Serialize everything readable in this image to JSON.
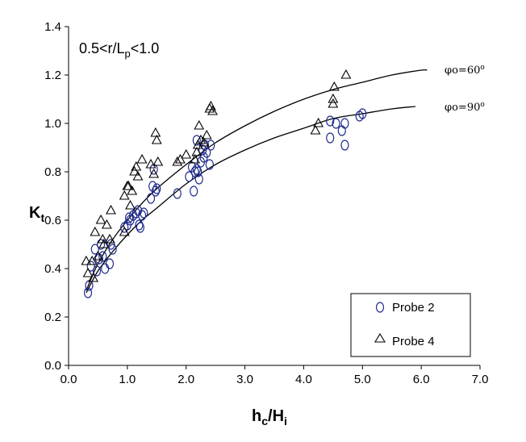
{
  "chart_data": {
    "type": "scatter",
    "xlabel": "h_c/H_i",
    "ylabel": "K_t",
    "xlim": [
      0.0,
      7.0
    ],
    "ylim": [
      0.0,
      1.4
    ],
    "xticks": [
      "0.0",
      "1.0",
      "2.0",
      "3.0",
      "4.0",
      "5.0",
      "6.0",
      "7.0"
    ],
    "yticks": [
      "0.0",
      "0.2",
      "0.4",
      "0.6",
      "0.8",
      "1.0",
      "1.2",
      "1.4"
    ],
    "annotation": "0.5<r/L_p<1.0",
    "grid": false,
    "legend_position": "bottom-right",
    "series": [
      {
        "name": "Probe 2",
        "marker": "circle",
        "color": "#1f2a8c",
        "points": [
          [
            0.33,
            0.3
          ],
          [
            0.35,
            0.33
          ],
          [
            0.38,
            0.41
          ],
          [
            0.45,
            0.48
          ],
          [
            0.48,
            0.39
          ],
          [
            0.52,
            0.44
          ],
          [
            0.55,
            0.5
          ],
          [
            0.58,
            0.45
          ],
          [
            0.62,
            0.4
          ],
          [
            0.7,
            0.42
          ],
          [
            0.72,
            0.5
          ],
          [
            0.75,
            0.48
          ],
          [
            0.95,
            0.57
          ],
          [
            1.0,
            0.58
          ],
          [
            1.03,
            0.61
          ],
          [
            1.05,
            0.6
          ],
          [
            1.1,
            0.62
          ],
          [
            1.15,
            0.63
          ],
          [
            1.18,
            0.64
          ],
          [
            1.2,
            0.58
          ],
          [
            1.22,
            0.57
          ],
          [
            1.25,
            0.62
          ],
          [
            1.28,
            0.63
          ],
          [
            1.4,
            0.69
          ],
          [
            1.43,
            0.74
          ],
          [
            1.45,
            0.81
          ],
          [
            1.48,
            0.72
          ],
          [
            1.5,
            0.73
          ],
          [
            1.85,
            0.71
          ],
          [
            2.05,
            0.78
          ],
          [
            2.1,
            0.82
          ],
          [
            2.13,
            0.72
          ],
          [
            2.15,
            0.8
          ],
          [
            2.18,
            0.81
          ],
          [
            2.2,
            0.8
          ],
          [
            2.22,
            0.77
          ],
          [
            2.25,
            0.84
          ],
          [
            2.28,
            0.89
          ],
          [
            2.3,
            0.86
          ],
          [
            2.32,
            0.91
          ],
          [
            2.35,
            0.88
          ],
          [
            2.4,
            0.83
          ],
          [
            2.42,
            0.91
          ],
          [
            2.18,
            0.93
          ],
          [
            4.45,
            0.94
          ],
          [
            4.45,
            1.01
          ],
          [
            4.55,
            1.0
          ],
          [
            4.65,
            0.97
          ],
          [
            4.7,
            0.91
          ],
          [
            4.7,
            1.0
          ],
          [
            4.95,
            1.03
          ],
          [
            5.0,
            1.04
          ]
        ]
      },
      {
        "name": "Probe 4",
        "marker": "triangle",
        "color": "#000000",
        "points": [
          [
            0.3,
            0.43
          ],
          [
            0.33,
            0.38
          ],
          [
            0.4,
            0.43
          ],
          [
            0.42,
            0.36
          ],
          [
            0.45,
            0.55
          ],
          [
            0.5,
            0.45
          ],
          [
            0.55,
            0.6
          ],
          [
            0.58,
            0.52
          ],
          [
            0.6,
            0.5
          ],
          [
            0.65,
            0.58
          ],
          [
            0.7,
            0.52
          ],
          [
            0.72,
            0.64
          ],
          [
            0.95,
            0.55
          ],
          [
            0.95,
            0.7
          ],
          [
            1.0,
            0.74
          ],
          [
            1.02,
            0.74
          ],
          [
            1.05,
            0.66
          ],
          [
            1.08,
            0.72
          ],
          [
            1.12,
            0.8
          ],
          [
            1.15,
            0.82
          ],
          [
            1.18,
            0.78
          ],
          [
            1.25,
            0.85
          ],
          [
            1.4,
            0.83
          ],
          [
            1.45,
            0.79
          ],
          [
            1.48,
            0.96
          ],
          [
            1.5,
            0.93
          ],
          [
            1.52,
            0.84
          ],
          [
            1.85,
            0.84
          ],
          [
            1.9,
            0.85
          ],
          [
            2.0,
            0.87
          ],
          [
            2.15,
            0.85
          ],
          [
            2.18,
            0.88
          ],
          [
            2.2,
            0.91
          ],
          [
            2.22,
            0.99
          ],
          [
            2.25,
            0.93
          ],
          [
            2.3,
            0.92
          ],
          [
            2.35,
            0.95
          ],
          [
            2.4,
            1.06
          ],
          [
            2.42,
            1.07
          ],
          [
            2.45,
            1.05
          ],
          [
            4.2,
            0.97
          ],
          [
            4.25,
            1.0
          ],
          [
            4.5,
            1.08
          ],
          [
            4.5,
            1.1
          ],
          [
            4.52,
            1.15
          ],
          [
            4.72,
            1.2
          ]
        ]
      }
    ],
    "curves": [
      {
        "label": "φo=60o",
        "label_main": "φo=60",
        "label_sup": "o",
        "points": [
          [
            0.3,
            0.31
          ],
          [
            0.5,
            0.42
          ],
          [
            0.75,
            0.52
          ],
          [
            1.0,
            0.6
          ],
          [
            1.25,
            0.67
          ],
          [
            1.5,
            0.73
          ],
          [
            2.0,
            0.83
          ],
          [
            2.5,
            0.92
          ],
          [
            3.0,
            0.99
          ],
          [
            3.5,
            1.05
          ],
          [
            4.0,
            1.1
          ],
          [
            4.5,
            1.14
          ],
          [
            5.0,
            1.17
          ],
          [
            5.5,
            1.2
          ],
          [
            6.0,
            1.22
          ],
          [
            6.1,
            1.22
          ]
        ]
      },
      {
        "label": "φo=90o",
        "label_main": "φo=90",
        "label_sup": "o",
        "points": [
          [
            0.3,
            0.3
          ],
          [
            0.5,
            0.39
          ],
          [
            0.75,
            0.47
          ],
          [
            1.0,
            0.54
          ],
          [
            1.25,
            0.6
          ],
          [
            1.5,
            0.65
          ],
          [
            2.0,
            0.75
          ],
          [
            2.5,
            0.83
          ],
          [
            3.0,
            0.89
          ],
          [
            3.5,
            0.94
          ],
          [
            4.0,
            0.98
          ],
          [
            4.5,
            1.02
          ],
          [
            5.0,
            1.04
          ],
          [
            5.5,
            1.06
          ],
          [
            5.9,
            1.07
          ]
        ]
      }
    ]
  }
}
